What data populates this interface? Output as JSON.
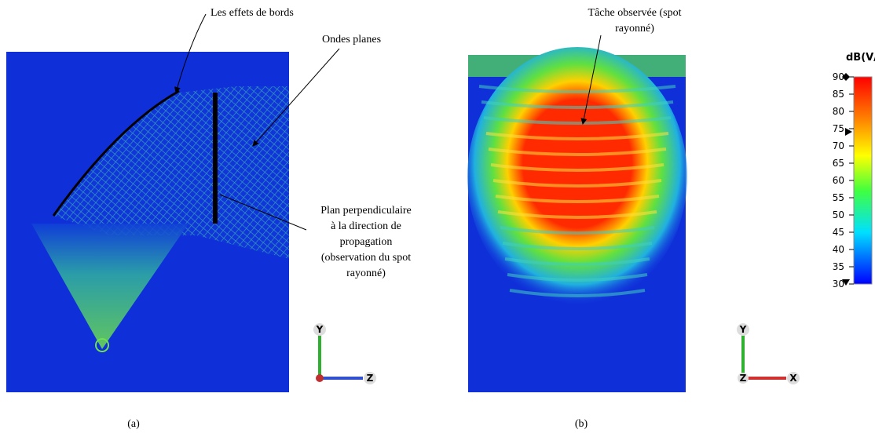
{
  "annotations": {
    "edge_effects": "Les effets de bords",
    "plane_waves": "Ondes planes",
    "plane_lines": [
      "Plan perpendiculaire",
      "à la direction de",
      "propagation",
      "(observation du spot",
      "rayonné)"
    ],
    "spot_lines": [
      "Tâche observée (spot",
      "rayonné)"
    ]
  },
  "panels": [
    {
      "caption": "(a)",
      "axes": [
        "Y",
        "Z"
      ]
    },
    {
      "caption": "(b)",
      "axes": [
        "Y",
        "Z",
        "X"
      ]
    }
  ],
  "colorbar": {
    "label": "dB(V/m)",
    "range": [
      30,
      90
    ],
    "ticks": [
      30,
      35,
      40,
      45,
      50,
      55,
      60,
      65,
      70,
      75,
      80,
      85,
      90
    ]
  }
}
